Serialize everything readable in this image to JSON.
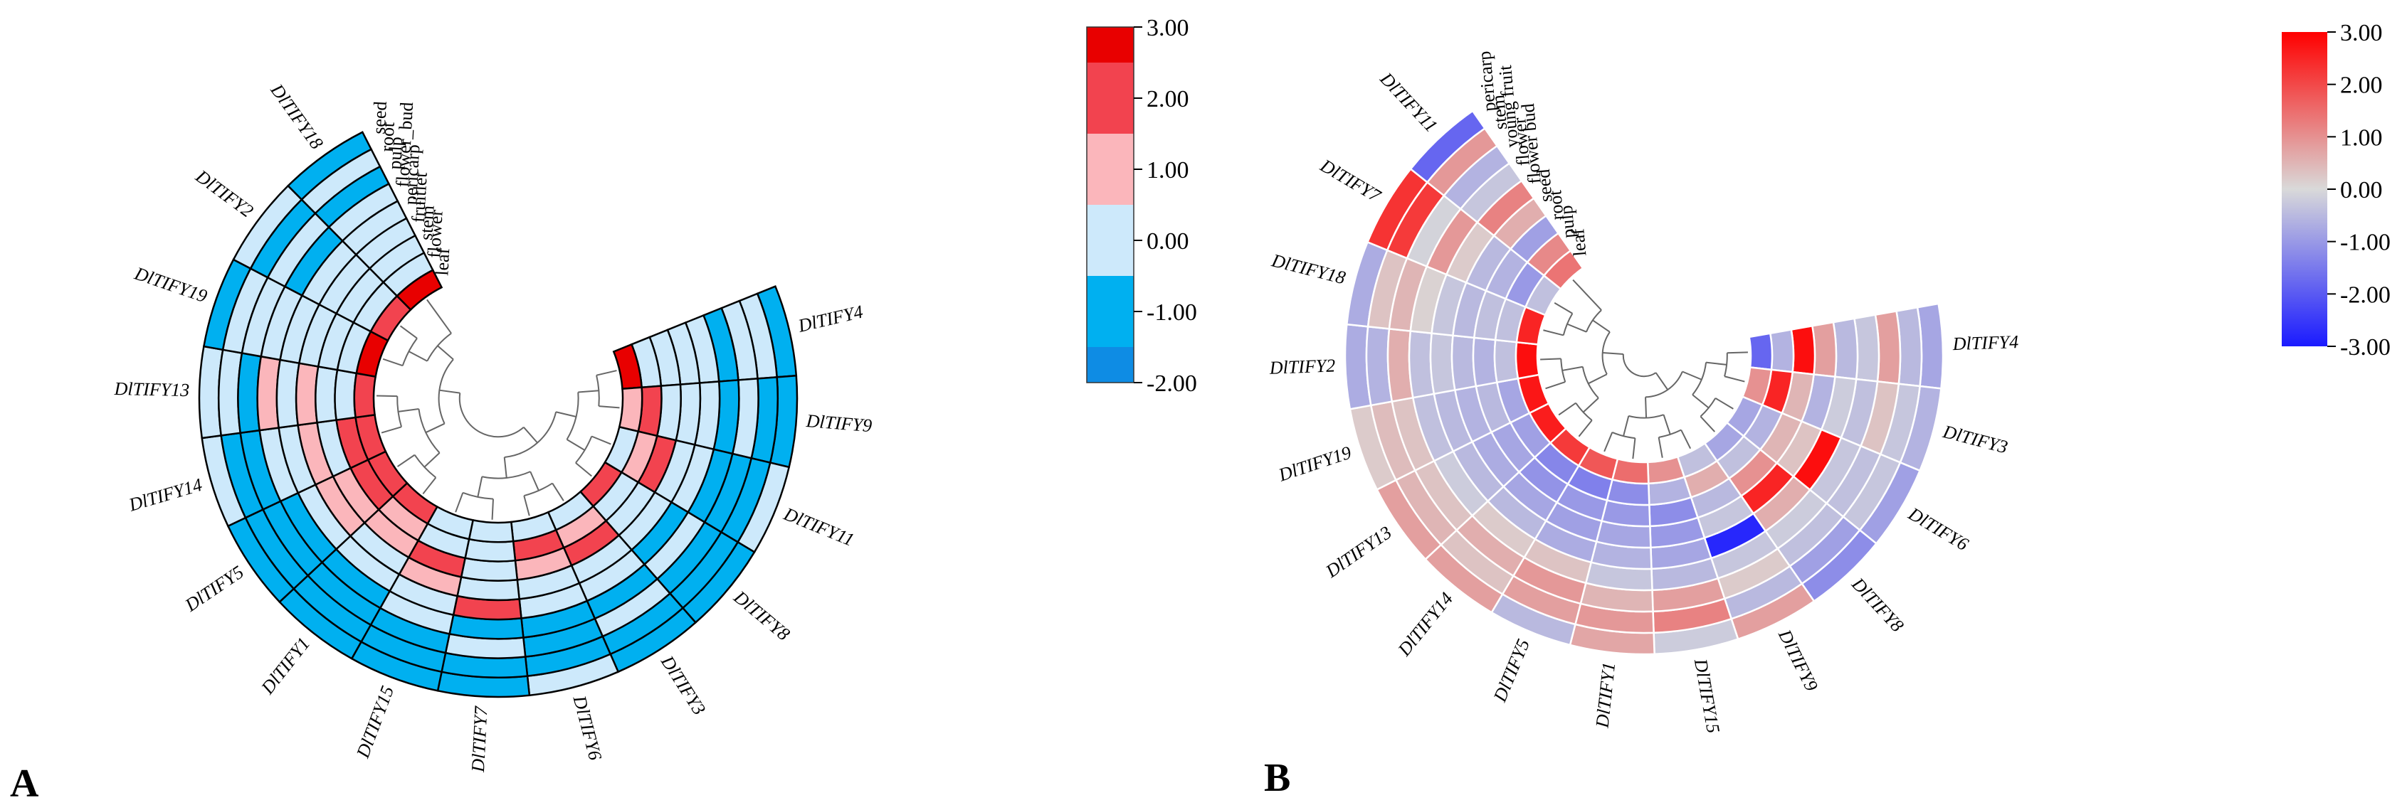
{
  "chart_data": [
    {
      "panel": "A",
      "type": "heatmap",
      "layout": "circular",
      "genes": [
        "DlTIFY4",
        "DlTIFY9",
        "DlTIFY11",
        "DlTIFY8",
        "DlTIFY3",
        "DlTIFY6",
        "DlTIFY7",
        "DlTIFY15",
        "DlTIFY1",
        "DlTIFY5",
        "DlTIFY14",
        "DlTIFY13",
        "DlTIFY19",
        "DlTIFY2",
        "DlTIFY18"
      ],
      "tissues": [
        "seed",
        "root",
        "pulp",
        "flower_bud",
        "pericarp",
        "fruitlet",
        "stem",
        "flower",
        "leaf"
      ],
      "values": [
        [
          -1.5,
          -0.5,
          -0.5,
          -1.5,
          -0.5,
          -0.5,
          -0.5,
          -0.5,
          2.5
        ],
        [
          -1.5,
          -1.5,
          -0.5,
          -1.5,
          -0.5,
          -0.5,
          -0.5,
          2.0,
          1.0
        ],
        [
          -0.5,
          -1.5,
          -1.5,
          -1.5,
          -0.5,
          -0.5,
          2.0,
          1.0,
          -0.5
        ],
        [
          -1.5,
          -1.5,
          -1.5,
          -0.5,
          -1.5,
          -0.5,
          -0.5,
          -0.5,
          2.0
        ],
        [
          -1.5,
          -1.5,
          -0.5,
          -1.5,
          -0.5,
          -0.5,
          2.0,
          1.0,
          -0.5
        ],
        [
          -0.5,
          -1.5,
          -1.5,
          -1.5,
          -0.5,
          -0.5,
          1.0,
          2.0,
          -0.5
        ],
        [
          -1.5,
          -1.5,
          -0.5,
          -1.5,
          2.0,
          -0.5,
          -0.5,
          -0.5,
          -0.5
        ],
        [
          -1.5,
          -1.5,
          -1.5,
          -0.5,
          -0.5,
          1.0,
          2.0,
          -0.5,
          -0.5
        ],
        [
          -1.5,
          -1.5,
          -1.5,
          -1.5,
          -0.5,
          -0.5,
          1.0,
          1.0,
          2.0
        ],
        [
          -1.5,
          -1.5,
          -1.5,
          -1.5,
          -0.5,
          1.0,
          1.0,
          2.0,
          2.0
        ],
        [
          -0.5,
          -1.5,
          -1.5,
          -0.5,
          -0.5,
          1.0,
          -0.5,
          2.0,
          2.0
        ],
        [
          -0.5,
          -0.5,
          -1.5,
          1.0,
          -0.5,
          1.0,
          -0.5,
          -0.5,
          2.0
        ],
        [
          -1.5,
          -0.5,
          -0.5,
          -0.5,
          -0.5,
          -0.5,
          -0.5,
          -0.5,
          2.5
        ],
        [
          -0.5,
          -1.5,
          -0.5,
          -1.5,
          -0.5,
          -0.5,
          -0.5,
          -0.5,
          2.0
        ],
        [
          -1.5,
          -0.5,
          -1.5,
          -0.5,
          -0.5,
          -0.5,
          -0.5,
          -0.5,
          2.5
        ]
      ],
      "legend": {
        "ticks": [
          "3.00",
          "2.00",
          "1.00",
          "0.00",
          "-1.00",
          "-2.00"
        ],
        "tick_values": [
          3,
          2,
          1,
          0,
          -1,
          -2
        ],
        "bands": [
          {
            "from": 2.5,
            "to": 3.0,
            "color": "#e80000"
          },
          {
            "from": 1.5,
            "to": 2.5,
            "color": "#f2434f"
          },
          {
            "from": 0.5,
            "to": 1.5,
            "color": "#fbb6bb"
          },
          {
            "from": -0.5,
            "to": 0.5,
            "color": "#cde9fb"
          },
          {
            "from": -1.5,
            "to": -0.5,
            "color": "#00b0f0"
          },
          {
            "from": -2.0,
            "to": -1.5,
            "color": "#0e8ce4"
          }
        ],
        "placement": "right"
      }
    },
    {
      "panel": "B",
      "type": "heatmap",
      "layout": "circular",
      "genes": [
        "DlTIFY4",
        "DlTIFY3",
        "DlTIFY6",
        "DlTIFY8",
        "DlTIFY9",
        "DlTIFY15",
        "DlTIFY1",
        "DlTIFY5",
        "DlTIFY14",
        "DlTIFY13",
        "DlTIFY19",
        "DlTIFY2",
        "DlTIFY18",
        "DlTIFY7",
        "DlTIFY11"
      ],
      "tissues": [
        "pericarp",
        "stem",
        "young fruit",
        "flower",
        "flower bud",
        "seed",
        "root",
        "pulp",
        "leaf"
      ],
      "values": [
        [
          -0.8,
          -0.5,
          0.8,
          -0.3,
          -0.5,
          0.8,
          2.8,
          -0.6,
          -1.8
        ],
        [
          -0.6,
          -0.3,
          0.3,
          -0.4,
          -0.2,
          -0.6,
          0.5,
          2.5,
          1.0
        ],
        [
          -0.9,
          -0.3,
          -0.4,
          -0.3,
          2.8,
          0.3,
          0.5,
          -0.6,
          -0.8
        ],
        [
          -1.2,
          -0.9,
          -0.4,
          -0.2,
          0.6,
          2.5,
          1.0,
          -0.4,
          -0.8
        ],
        [
          0.8,
          -0.5,
          0.2,
          -0.3,
          -2.8,
          -0.3,
          -0.5,
          0.6,
          -0.4
        ],
        [
          -0.2,
          1.2,
          0.8,
          -0.5,
          -0.8,
          -1.0,
          -1.2,
          -0.6,
          1.0
        ],
        [
          0.7,
          0.9,
          0.5,
          -0.3,
          -0.6,
          -0.8,
          -1.0,
          -1.2,
          1.5
        ],
        [
          -0.5,
          0.8,
          0.9,
          0.3,
          -0.7,
          -0.9,
          -1.0,
          -1.4,
          1.8
        ],
        [
          0.8,
          0.3,
          0.6,
          0.2,
          -0.5,
          -0.8,
          -1.1,
          -1.3,
          2.2
        ],
        [
          0.8,
          0.5,
          0.3,
          -0.2,
          -0.5,
          -0.7,
          -0.8,
          -0.9,
          2.6
        ],
        [
          0.2,
          0.4,
          0.3,
          -0.4,
          -0.5,
          -0.6,
          -0.5,
          -0.8,
          2.7
        ],
        [
          -0.7,
          -0.6,
          0.6,
          -0.4,
          -0.3,
          -0.5,
          -0.6,
          -0.4,
          2.8
        ],
        [
          -0.7,
          0.3,
          0.5,
          0.1,
          -0.3,
          -0.5,
          -0.4,
          -0.4,
          2.5
        ],
        [
          2.3,
          2.2,
          -0.1,
          0.9,
          0.2,
          -0.5,
          -0.6,
          -1.0,
          -0.4
        ],
        [
          -1.8,
          0.9,
          -0.6,
          -0.3,
          1.2,
          0.6,
          -0.9,
          1.1,
          1.4
        ]
      ],
      "legend": {
        "ticks": [
          "3.00",
          "2.00",
          "1.00",
          "0.00",
          "-1.00",
          "-2.00",
          "-3.00"
        ],
        "tick_values": [
          3,
          2,
          1,
          0,
          -1,
          -2,
          -3
        ],
        "scale": "continuous",
        "stops": [
          {
            "value": 3,
            "color": "#ff0000"
          },
          {
            "value": 0,
            "color": "#d9d9d9"
          },
          {
            "value": -3,
            "color": "#1a1aff"
          }
        ],
        "placement": "right"
      }
    }
  ]
}
